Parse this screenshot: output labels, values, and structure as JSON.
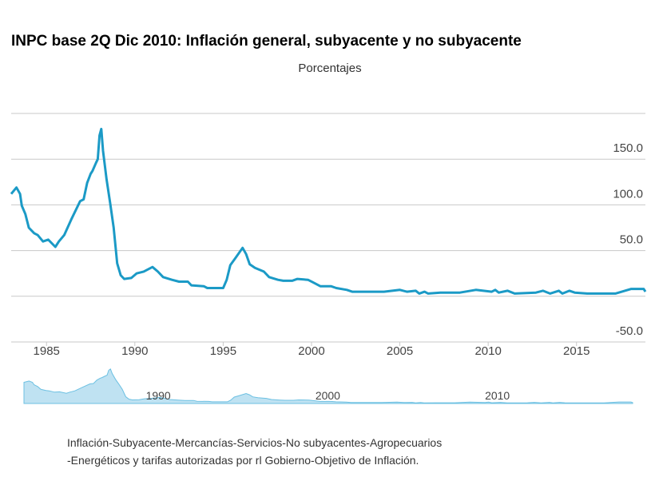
{
  "chart_data": {
    "type": "line",
    "title": "INPC base 2Q Dic 2010: Inflación general, subyacente y no subyacente",
    "subtitle": "Porcentajes",
    "x": [
      1983.0,
      1983.3,
      1983.5,
      1983.6,
      1983.8,
      1984.0,
      1984.3,
      1984.5,
      1984.8,
      1985.1,
      1985.5,
      1985.7,
      1986.0,
      1986.4,
      1986.9,
      1987.1,
      1987.3,
      1987.5,
      1987.6,
      1987.8,
      1987.9,
      1988.0,
      1988.1,
      1988.2,
      1988.4,
      1988.6,
      1988.8,
      1989.0,
      1989.2,
      1989.4,
      1989.8,
      1990.1,
      1990.5,
      1991.0,
      1991.3,
      1991.6,
      1992.1,
      1992.5,
      1993.0,
      1993.2,
      1993.9,
      1994.1,
      1995.0,
      1995.2,
      1995.4,
      1995.7,
      1996.1,
      1996.3,
      1996.5,
      1996.8,
      1997.3,
      1997.6,
      1998.1,
      1998.4,
      1998.9,
      1999.2,
      1999.8,
      2000.1,
      2000.5,
      2001.1,
      2001.4,
      2002.0,
      2002.3,
      2004.1,
      2005.0,
      2005.4,
      2005.9,
      2006.1,
      2006.4,
      2006.6,
      2007.3,
      2008.4,
      2009.3,
      2010.2,
      2010.4,
      2010.6,
      2011.1,
      2011.5,
      2012.7,
      2013.1,
      2013.5,
      2014.0,
      2014.2,
      2014.6,
      2014.9,
      2015.6,
      2017.2,
      2018.1,
      2018.8,
      2018.9
    ],
    "values": [
      112,
      119,
      112,
      99,
      90,
      75,
      69,
      67,
      60,
      62,
      54,
      60,
      67,
      84,
      104,
      106,
      124,
      134,
      137,
      146,
      150,
      176,
      183,
      159,
      128,
      102,
      75,
      36,
      23,
      19,
      20,
      25,
      27,
      32,
      27,
      21,
      18,
      16,
      16,
      12,
      11,
      9,
      9,
      18,
      34,
      42,
      53,
      46,
      35,
      31,
      27,
      21,
      18,
      17,
      17,
      19,
      18,
      15,
      11,
      11,
      9,
      7,
      5,
      5,
      7,
      5,
      6,
      3,
      5,
      3,
      4,
      4,
      7,
      5,
      7,
      4,
      6,
      3,
      4,
      6,
      3,
      6,
      3,
      6,
      4,
      3,
      3,
      8,
      8,
      5
    ],
    "color": "#1b9ac6",
    "xlim": [
      1983.0,
      2018.9
    ],
    "xticks": [
      1985,
      1990,
      1995,
      2000,
      2005,
      2010,
      2015
    ],
    "ylim": [
      -50,
      200
    ],
    "yticks": [
      {
        "value": -50,
        "label": "-50.0"
      },
      {
        "value": 0,
        "label": null
      },
      {
        "value": 50,
        "label": "50.0"
      },
      {
        "value": 100,
        "label": "100.0"
      },
      {
        "value": 150,
        "label": "150.0"
      },
      {
        "value": 200,
        "label": null
      }
    ],
    "grid": true,
    "navigator_xticks": [
      1990,
      2000,
      2010
    ],
    "caption": [
      "Inflación-Subyacente-Mercancías-Servicios-No subyacentes-Agropecuarios",
      "-Energéticos y tarifas autorizadas por rl Gobierno-Objetivo de Inflación."
    ]
  }
}
